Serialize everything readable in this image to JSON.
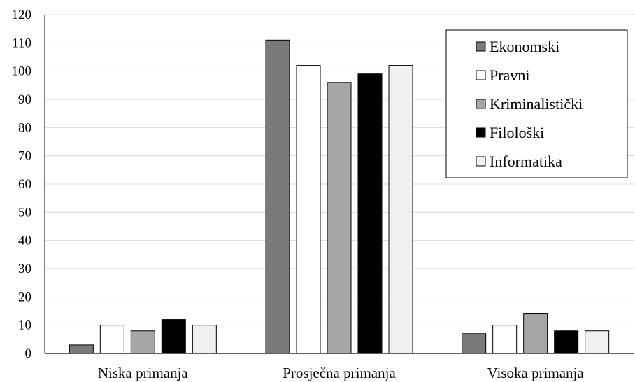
{
  "chart_data": {
    "type": "bar",
    "categories": [
      "Niska primanja",
      "Prosječna primanja",
      "Visoka primanja"
    ],
    "series": [
      {
        "name": "Ekonomski",
        "color": "#7a7a7a",
        "values": [
          3,
          111,
          7
        ]
      },
      {
        "name": "Pravni",
        "color": "#ffffff",
        "values": [
          10,
          102,
          10
        ]
      },
      {
        "name": "Kriminalistički",
        "color": "#a6a6a6",
        "values": [
          8,
          96,
          14
        ]
      },
      {
        "name": "Filološki",
        "color": "#000000",
        "values": [
          12,
          99,
          8
        ]
      },
      {
        "name": "Informatika",
        "color": "#f0f0f0",
        "values": [
          10,
          102,
          8
        ]
      }
    ],
    "ylim": [
      0,
      120
    ],
    "yticks": [
      "0",
      "10",
      "20",
      "30",
      "40",
      "50",
      "60",
      "70",
      "80",
      "90",
      "100",
      "110",
      "120"
    ],
    "grid": true,
    "legend_position": "top-right"
  }
}
